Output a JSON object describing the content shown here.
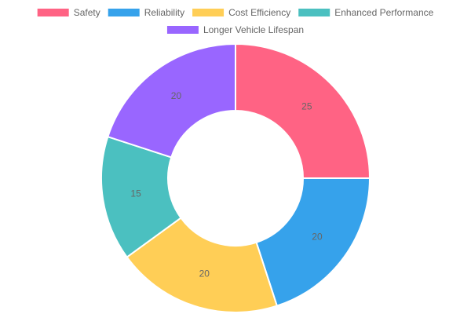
{
  "chart_data": {
    "type": "pie",
    "variant": "doughnut",
    "title": "",
    "categories": [
      "Safety",
      "Reliability",
      "Cost Efficiency",
      "Enhanced Performance",
      "Longer Vehicle Lifespan"
    ],
    "values": [
      25,
      20,
      20,
      15,
      20
    ],
    "colors": [
      "#ff6384",
      "#36a2eb",
      "#ffce56",
      "#4bc0c0",
      "#9966ff"
    ],
    "legend_position": "top",
    "slice_labels_shown": true
  }
}
